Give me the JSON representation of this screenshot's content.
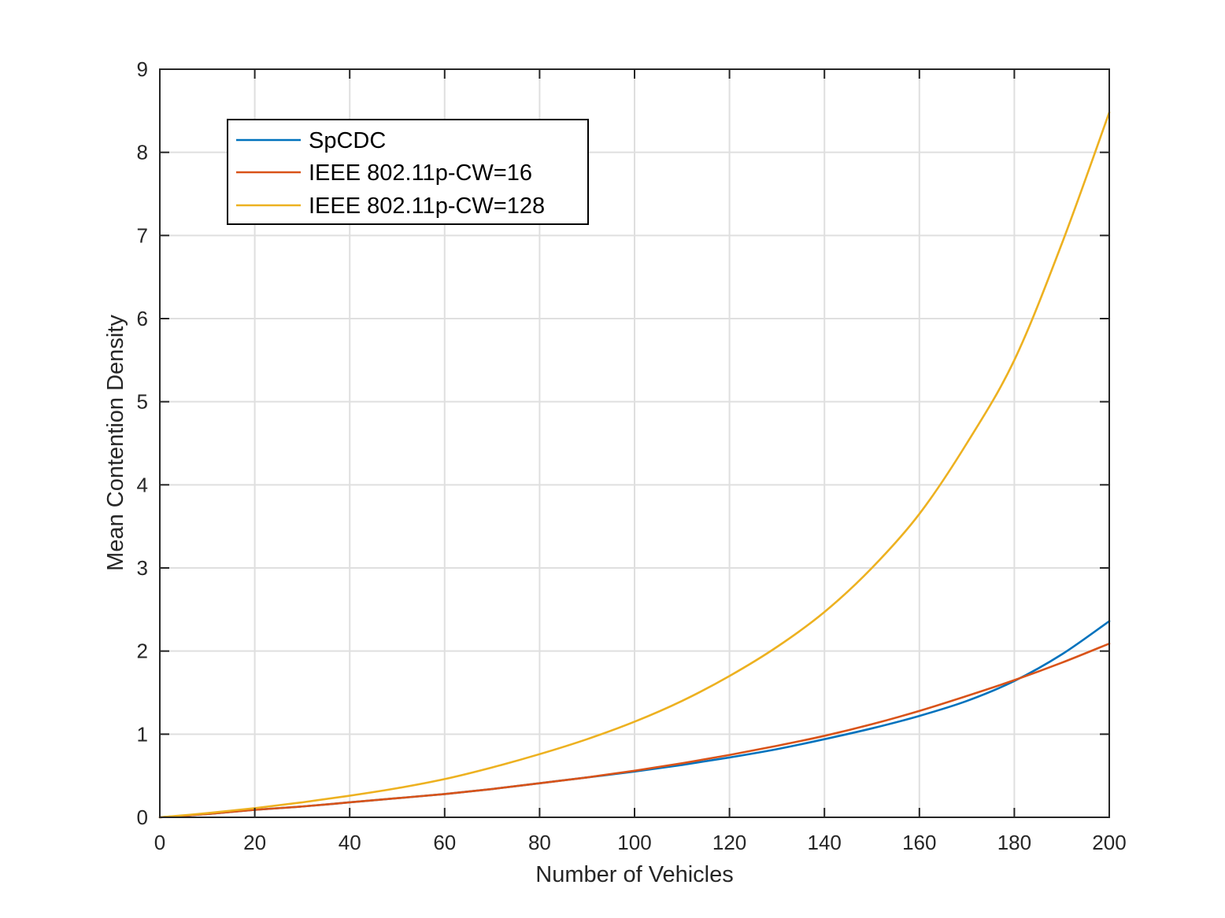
{
  "chart_data": {
    "type": "line",
    "title": "",
    "xlabel": "Number of Vehicles",
    "ylabel": "Mean Contention Density",
    "xlim": [
      0,
      200
    ],
    "ylim": [
      0,
      9
    ],
    "x_ticks": [
      0,
      20,
      40,
      60,
      80,
      100,
      120,
      140,
      160,
      180,
      200
    ],
    "y_ticks": [
      0,
      1,
      2,
      3,
      4,
      5,
      6,
      7,
      8,
      9
    ],
    "x_tick_labels": [
      "0",
      "20",
      "40",
      "60",
      "80",
      "100",
      "120",
      "140",
      "160",
      "180",
      "200"
    ],
    "y_tick_labels": [
      "0",
      "1",
      "2",
      "3",
      "4",
      "5",
      "6",
      "7",
      "8",
      "9"
    ],
    "grid": true,
    "legend_position": "top-left",
    "x": [
      0,
      10,
      20,
      30,
      40,
      50,
      60,
      70,
      80,
      90,
      100,
      110,
      120,
      130,
      140,
      150,
      160,
      170,
      180,
      190,
      200
    ],
    "series": [
      {
        "name": "SpCDC",
        "color": "#0072BD",
        "values": [
          0,
          0.04,
          0.09,
          0.13,
          0.18,
          0.23,
          0.28,
          0.34,
          0.41,
          0.48,
          0.55,
          0.63,
          0.72,
          0.82,
          0.94,
          1.07,
          1.22,
          1.4,
          1.64,
          1.96,
          2.36
        ]
      },
      {
        "name": "IEEE 802.11p-CW=16",
        "color": "#D95319",
        "values": [
          0,
          0.04,
          0.09,
          0.13,
          0.18,
          0.23,
          0.28,
          0.34,
          0.41,
          0.48,
          0.56,
          0.65,
          0.75,
          0.86,
          0.98,
          1.12,
          1.28,
          1.46,
          1.65,
          1.86,
          2.09
        ]
      },
      {
        "name": "IEEE 802.11p-CW=128",
        "color": "#EDB120",
        "values": [
          0,
          0.05,
          0.11,
          0.18,
          0.26,
          0.35,
          0.46,
          0.6,
          0.76,
          0.94,
          1.15,
          1.4,
          1.7,
          2.05,
          2.47,
          3.0,
          3.65,
          4.5,
          5.5,
          6.9,
          8.48
        ]
      }
    ]
  }
}
